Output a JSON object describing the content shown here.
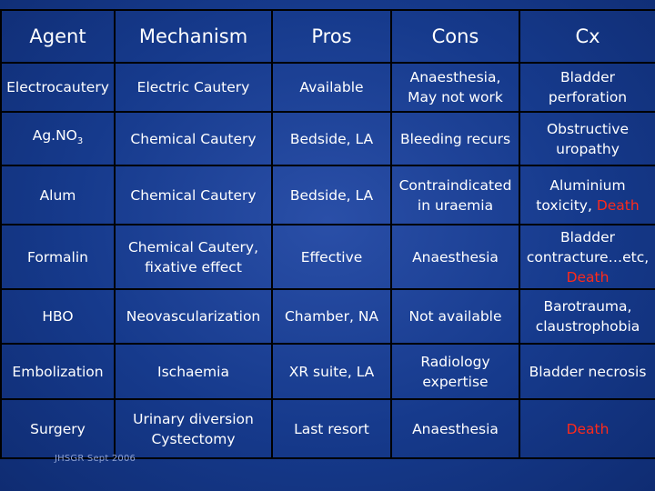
{
  "headers": [
    "Agent",
    "Mechanism",
    "Pros",
    "Cons",
    "Cx"
  ],
  "rows": [
    {
      "agent": "Electrocautery",
      "mechanism": "Electric Cautery",
      "pros": "Available",
      "cons": "Anaesthesia, May not work",
      "cx": "Bladder perforation"
    },
    {
      "agent": "Ag.NO",
      "agent_sub": "3",
      "mechanism": "Chemical Cautery",
      "pros": "Bedside, LA",
      "cons": "Bleeding recurs",
      "cx": "Obstructive uropathy"
    },
    {
      "agent": "Alum",
      "mechanism": "Chemical Cautery",
      "pros": "Bedside, LA",
      "cons": "Contraindicated in uraemia",
      "cx": "Aluminium toxicity,",
      "cx_red": "Death"
    },
    {
      "agent": "Formalin",
      "mechanism": "Chemical Cautery, fixative effect",
      "pros": "Effective",
      "cons": "Anaesthesia",
      "cx": "Bladder contracture…etc,",
      "cx_red": "Death"
    },
    {
      "agent": "HBO",
      "mechanism": "Neovascularization",
      "pros": "Chamber, NA",
      "cons": "Not available",
      "cx": "Barotrauma, claustrophobia"
    },
    {
      "agent": "Embolization",
      "mechanism": "Ischaemia",
      "pros": "XR suite, LA",
      "cons": "Radiology expertise",
      "cx": "Bladder necrosis"
    },
    {
      "agent": "Surgery",
      "mechanism": "Urinary diversion Cystectomy",
      "pros": "Last resort",
      "cons": "Anaesthesia",
      "cx_red": "Death"
    }
  ],
  "footer": "JHSGR Sept 2006",
  "colors": {
    "background": "#163a8c",
    "text": "#ffffff",
    "highlight": "#ff2a1a",
    "grid": "#000000"
  }
}
